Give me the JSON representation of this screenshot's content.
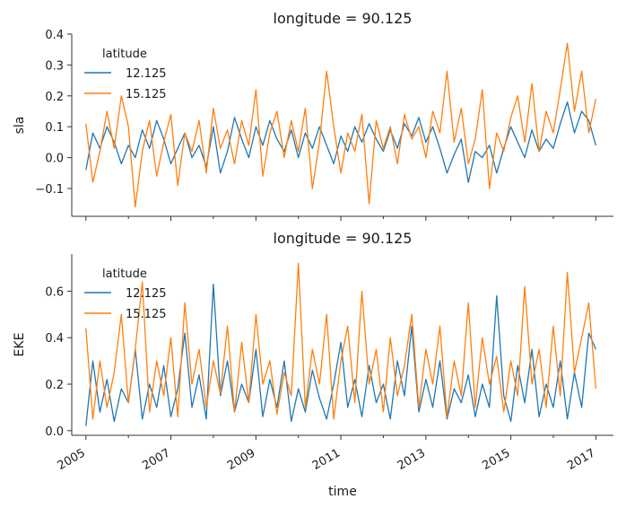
{
  "figure": {
    "xlabel": "time"
  },
  "chart_data": [
    {
      "type": "line",
      "title": "longitude = 90.125",
      "ylabel": "sla",
      "xlim": [
        "2004-09-01",
        "2017-06-01"
      ],
      "ylim": [
        -0.19,
        0.4
      ],
      "yticks": [
        -0.1,
        0.0,
        0.1,
        0.2,
        0.3,
        0.4
      ],
      "ytick_labels": [
        "−0.1",
        "0.0",
        "0.1",
        "0.2",
        "0.3",
        "0.4"
      ],
      "legend": {
        "title": "latitude",
        "placement": "top-left"
      },
      "series": [
        {
          "name": "12.125",
          "color": "#1f77b4",
          "x": [
            "2005-01-01",
            "2005-03-01",
            "2005-05-01",
            "2005-07-01",
            "2005-09-01",
            "2005-11-01",
            "2006-01-01",
            "2006-03-01",
            "2006-05-01",
            "2006-07-01",
            "2006-09-01",
            "2006-11-01",
            "2007-01-01",
            "2007-03-01",
            "2007-05-01",
            "2007-07-01",
            "2007-09-01",
            "2007-11-01",
            "2008-01-01",
            "2008-03-01",
            "2008-05-01",
            "2008-07-01",
            "2008-09-01",
            "2008-11-01",
            "2009-01-01",
            "2009-03-01",
            "2009-05-01",
            "2009-07-01",
            "2009-09-01",
            "2009-11-01",
            "2010-01-01",
            "2010-03-01",
            "2010-05-01",
            "2010-07-01",
            "2010-09-01",
            "2010-11-01",
            "2011-01-01",
            "2011-03-01",
            "2011-05-01",
            "2011-07-01",
            "2011-09-01",
            "2011-11-01",
            "2012-01-01",
            "2012-03-01",
            "2012-05-01",
            "2012-07-01",
            "2012-09-01",
            "2012-11-01",
            "2013-01-01",
            "2013-03-01",
            "2013-05-01",
            "2013-07-01",
            "2013-09-01",
            "2013-11-01",
            "2014-01-01",
            "2014-03-01",
            "2014-05-01",
            "2014-07-01",
            "2014-09-01",
            "2014-11-01",
            "2015-01-01",
            "2015-03-01",
            "2015-05-01",
            "2015-07-01",
            "2015-09-01",
            "2015-11-01",
            "2016-01-01",
            "2016-03-01",
            "2016-05-01",
            "2016-07-01",
            "2016-09-01",
            "2016-11-01",
            "2017-01-01"
          ],
          "values": [
            -0.04,
            0.08,
            0.03,
            0.1,
            0.05,
            -0.02,
            0.04,
            0.0,
            0.09,
            0.03,
            0.12,
            0.06,
            -0.02,
            0.03,
            0.08,
            0.0,
            0.04,
            -0.03,
            0.1,
            -0.05,
            0.02,
            0.13,
            0.06,
            0.0,
            0.1,
            0.04,
            0.12,
            0.06,
            0.02,
            0.09,
            0.0,
            0.08,
            0.03,
            0.1,
            0.04,
            -0.02,
            0.07,
            0.02,
            0.1,
            0.05,
            0.11,
            0.06,
            0.02,
            0.09,
            0.03,
            0.11,
            0.07,
            0.13,
            0.05,
            0.1,
            0.03,
            -0.05,
            0.01,
            0.06,
            -0.08,
            0.02,
            0.0,
            0.04,
            -0.05,
            0.03,
            0.1,
            0.05,
            0.0,
            0.09,
            0.02,
            0.06,
            0.03,
            0.11,
            0.18,
            0.08,
            0.15,
            0.12,
            0.04
          ]
        },
        {
          "name": "15.125",
          "color": "#ff7f0e",
          "x": [
            "2005-01-01",
            "2005-03-01",
            "2005-05-01",
            "2005-07-01",
            "2005-09-01",
            "2005-11-01",
            "2006-01-01",
            "2006-03-01",
            "2006-05-01",
            "2006-07-01",
            "2006-09-01",
            "2006-11-01",
            "2007-01-01",
            "2007-03-01",
            "2007-05-01",
            "2007-07-01",
            "2007-09-01",
            "2007-11-01",
            "2008-01-01",
            "2008-03-01",
            "2008-05-01",
            "2008-07-01",
            "2008-09-01",
            "2008-11-01",
            "2009-01-01",
            "2009-03-01",
            "2009-05-01",
            "2009-07-01",
            "2009-09-01",
            "2009-11-01",
            "2010-01-01",
            "2010-03-01",
            "2010-05-01",
            "2010-07-01",
            "2010-09-01",
            "2010-11-01",
            "2011-01-01",
            "2011-03-01",
            "2011-05-01",
            "2011-07-01",
            "2011-09-01",
            "2011-11-01",
            "2012-01-01",
            "2012-03-01",
            "2012-05-01",
            "2012-07-01",
            "2012-09-01",
            "2012-11-01",
            "2013-01-01",
            "2013-03-01",
            "2013-05-01",
            "2013-07-01",
            "2013-09-01",
            "2013-11-01",
            "2014-01-01",
            "2014-03-01",
            "2014-05-01",
            "2014-07-01",
            "2014-09-01",
            "2014-11-01",
            "2015-01-01",
            "2015-03-01",
            "2015-05-01",
            "2015-07-01",
            "2015-09-01",
            "2015-11-01",
            "2016-01-01",
            "2016-03-01",
            "2016-05-01",
            "2016-07-01",
            "2016-09-01",
            "2016-11-01",
            "2017-01-01"
          ],
          "values": [
            0.11,
            -0.08,
            0.02,
            0.15,
            0.03,
            0.2,
            0.1,
            -0.16,
            0.02,
            0.12,
            -0.06,
            0.05,
            0.14,
            -0.09,
            0.08,
            0.02,
            0.12,
            -0.05,
            0.16,
            0.03,
            0.09,
            -0.02,
            0.12,
            0.04,
            0.22,
            -0.06,
            0.08,
            0.15,
            0.0,
            0.12,
            0.02,
            0.16,
            -0.1,
            0.05,
            0.28,
            0.1,
            -0.05,
            0.08,
            0.02,
            0.14,
            -0.15,
            0.12,
            0.03,
            0.1,
            -0.02,
            0.14,
            0.06,
            0.1,
            0.0,
            0.15,
            0.08,
            0.28,
            0.05,
            0.16,
            -0.02,
            0.06,
            0.22,
            -0.1,
            0.08,
            0.02,
            0.13,
            0.2,
            0.05,
            0.24,
            0.02,
            0.15,
            0.08,
            0.22,
            0.37,
            0.15,
            0.28,
            0.08,
            0.19
          ]
        }
      ]
    },
    {
      "type": "line",
      "title": "longitude = 90.125",
      "ylabel": "EKE",
      "xlim": [
        "2004-09-01",
        "2017-06-01"
      ],
      "ylim": [
        -0.02,
        0.76
      ],
      "yticks": [
        0.0,
        0.2,
        0.4,
        0.6
      ],
      "ytick_labels": [
        "0.0",
        "0.2",
        "0.4",
        "0.6"
      ],
      "legend": {
        "title": "latitude",
        "placement": "top-left"
      },
      "xticks": [
        "2005-01-01",
        "2007-01-01",
        "2009-01-01",
        "2011-01-01",
        "2013-01-01",
        "2015-01-01",
        "2017-01-01"
      ],
      "xtick_labels": [
        "2005",
        "2007",
        "2009",
        "2011",
        "2013",
        "2015",
        "2017"
      ],
      "series": [
        {
          "name": "12.125",
          "color": "#1f77b4",
          "x": [
            "2005-01-01",
            "2005-03-01",
            "2005-05-01",
            "2005-07-01",
            "2005-09-01",
            "2005-11-01",
            "2006-01-01",
            "2006-03-01",
            "2006-05-01",
            "2006-07-01",
            "2006-09-01",
            "2006-11-01",
            "2007-01-01",
            "2007-03-01",
            "2007-05-01",
            "2007-07-01",
            "2007-09-01",
            "2007-11-01",
            "2008-01-01",
            "2008-03-01",
            "2008-05-01",
            "2008-07-01",
            "2008-09-01",
            "2008-11-01",
            "2009-01-01",
            "2009-03-01",
            "2009-05-01",
            "2009-07-01",
            "2009-09-01",
            "2009-11-01",
            "2010-01-01",
            "2010-03-01",
            "2010-05-01",
            "2010-07-01",
            "2010-09-01",
            "2010-11-01",
            "2011-01-01",
            "2011-03-01",
            "2011-05-01",
            "2011-07-01",
            "2011-09-01",
            "2011-11-01",
            "2012-01-01",
            "2012-03-01",
            "2012-05-01",
            "2012-07-01",
            "2012-09-01",
            "2012-11-01",
            "2013-01-01",
            "2013-03-01",
            "2013-05-01",
            "2013-07-01",
            "2013-09-01",
            "2013-11-01",
            "2014-01-01",
            "2014-03-01",
            "2014-05-01",
            "2014-07-01",
            "2014-09-01",
            "2014-11-01",
            "2015-01-01",
            "2015-03-01",
            "2015-05-01",
            "2015-07-01",
            "2015-09-01",
            "2015-11-01",
            "2016-01-01",
            "2016-03-01",
            "2016-05-01",
            "2016-07-01",
            "2016-09-01",
            "2016-11-01",
            "2017-01-01"
          ],
          "values": [
            0.02,
            0.3,
            0.08,
            0.22,
            0.04,
            0.18,
            0.12,
            0.35,
            0.05,
            0.2,
            0.1,
            0.28,
            0.06,
            0.18,
            0.42,
            0.1,
            0.24,
            0.05,
            0.63,
            0.15,
            0.3,
            0.08,
            0.2,
            0.12,
            0.35,
            0.06,
            0.22,
            0.1,
            0.3,
            0.04,
            0.18,
            0.08,
            0.26,
            0.14,
            0.05,
            0.2,
            0.38,
            0.1,
            0.22,
            0.06,
            0.28,
            0.12,
            0.2,
            0.05,
            0.3,
            0.15,
            0.45,
            0.08,
            0.22,
            0.1,
            0.3,
            0.05,
            0.18,
            0.12,
            0.24,
            0.06,
            0.2,
            0.1,
            0.58,
            0.15,
            0.04,
            0.28,
            0.12,
            0.35,
            0.06,
            0.2,
            0.1,
            0.3,
            0.05,
            0.25,
            0.1,
            0.42,
            0.35
          ]
        },
        {
          "name": "15.125",
          "color": "#ff7f0e",
          "x": [
            "2005-01-01",
            "2005-03-01",
            "2005-05-01",
            "2005-07-01",
            "2005-09-01",
            "2005-11-01",
            "2006-01-01",
            "2006-03-01",
            "2006-05-01",
            "2006-07-01",
            "2006-09-01",
            "2006-11-01",
            "2007-01-01",
            "2007-03-01",
            "2007-05-01",
            "2007-07-01",
            "2007-09-01",
            "2007-11-01",
            "2008-01-01",
            "2008-03-01",
            "2008-05-01",
            "2008-07-01",
            "2008-09-01",
            "2008-11-01",
            "2009-01-01",
            "2009-03-01",
            "2009-05-01",
            "2009-07-01",
            "2009-09-01",
            "2009-11-01",
            "2010-01-01",
            "2010-03-01",
            "2010-05-01",
            "2010-07-01",
            "2010-09-01",
            "2010-11-01",
            "2011-01-01",
            "2011-03-01",
            "2011-05-01",
            "2011-07-01",
            "2011-09-01",
            "2011-11-01",
            "2012-01-01",
            "2012-03-01",
            "2012-05-01",
            "2012-07-01",
            "2012-09-01",
            "2012-11-01",
            "2013-01-01",
            "2013-03-01",
            "2013-05-01",
            "2013-07-01",
            "2013-09-01",
            "2013-11-01",
            "2014-01-01",
            "2014-03-01",
            "2014-05-01",
            "2014-07-01",
            "2014-09-01",
            "2014-11-01",
            "2015-01-01",
            "2015-03-01",
            "2015-05-01",
            "2015-07-01",
            "2015-09-01",
            "2015-11-01",
            "2016-01-01",
            "2016-03-01",
            "2016-05-01",
            "2016-07-01",
            "2016-09-01",
            "2016-11-01",
            "2017-01-01"
          ],
          "values": [
            0.44,
            0.05,
            0.3,
            0.1,
            0.25,
            0.5,
            0.12,
            0.35,
            0.64,
            0.08,
            0.3,
            0.15,
            0.4,
            0.06,
            0.55,
            0.2,
            0.35,
            0.1,
            0.3,
            0.16,
            0.45,
            0.08,
            0.38,
            0.12,
            0.5,
            0.2,
            0.3,
            0.07,
            0.25,
            0.15,
            0.72,
            0.1,
            0.35,
            0.2,
            0.5,
            0.05,
            0.3,
            0.45,
            0.12,
            0.6,
            0.2,
            0.35,
            0.08,
            0.4,
            0.15,
            0.28,
            0.5,
            0.1,
            0.35,
            0.2,
            0.45,
            0.06,
            0.3,
            0.15,
            0.55,
            0.1,
            0.4,
            0.2,
            0.32,
            0.08,
            0.3,
            0.15,
            0.62,
            0.2,
            0.35,
            0.1,
            0.45,
            0.15,
            0.68,
            0.25,
            0.4,
            0.55,
            0.18
          ]
        }
      ]
    }
  ]
}
